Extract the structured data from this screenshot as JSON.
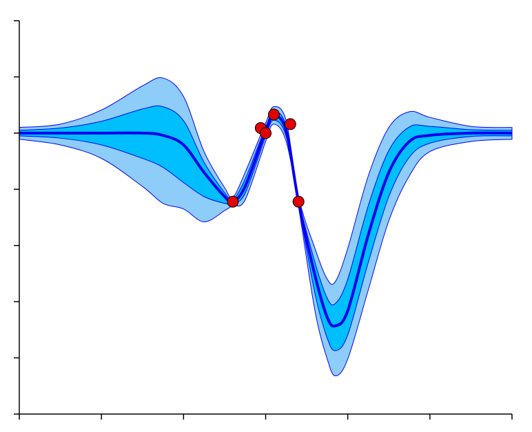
{
  "chart_data": {
    "type": "line",
    "x": [
      0,
      0.5,
      1,
      1.5,
      1.75,
      2,
      2.25,
      2.5,
      2.6,
      2.75,
      3,
      3.1,
      3.25,
      3.4,
      3.6,
      3.75,
      3.85,
      4,
      4.25,
      4.5,
      4.75,
      5,
      5.5,
      6
    ],
    "mean": {
      "color": "#0000ee",
      "values": [
        0,
        0,
        0,
        0,
        -0.04,
        -0.21,
        -0.7,
        -1.13,
        -1.22,
        -0.95,
        0.04,
        0.31,
        0.04,
        -1.22,
        -2.53,
        -3.28,
        -3.43,
        -3.16,
        -1.81,
        -0.7,
        -0.15,
        -0.04,
        0,
        0
      ]
    },
    "bands": [
      {
        "color": "#8ecdf9",
        "edge_color": "#0000ff",
        "upper": [
          0.1,
          0.16,
          0.41,
          0.84,
          0.98,
          0.65,
          -0.33,
          -0.97,
          -1.14,
          -0.7,
          0.18,
          0.47,
          0.22,
          -1.13,
          -2.05,
          -2.6,
          -2.64,
          -2.05,
          -0.76,
          0.1,
          0.38,
          0.28,
          0.12,
          0.1
        ],
        "lower": [
          -0.11,
          -0.21,
          -0.45,
          -0.95,
          -1.25,
          -1.35,
          -1.58,
          -1.38,
          -1.29,
          -1.19,
          -0.15,
          0.16,
          -0.15,
          -1.31,
          -3.16,
          -4.02,
          -4.32,
          -4.02,
          -2.79,
          -1.56,
          -0.76,
          -0.33,
          -0.15,
          -0.11
        ]
      },
      {
        "color": "#00bfff",
        "edge_color": "#0000ff",
        "upper": [
          0.05,
          0.09,
          0.21,
          0.43,
          0.47,
          0.22,
          -0.52,
          -1.06,
          -1.18,
          -0.82,
          0.11,
          0.38,
          0.12,
          -1.17,
          -2.3,
          -2.94,
          -3.03,
          -2.6,
          -1.29,
          -0.31,
          0.11,
          0.12,
          0.06,
          0.05
        ],
        "lower": [
          -0.05,
          -0.09,
          -0.21,
          -0.45,
          -0.61,
          -0.88,
          -1.13,
          -1.25,
          -1.25,
          -1.07,
          -0.06,
          0.23,
          -0.06,
          -1.27,
          -2.85,
          -3.65,
          -3.87,
          -3.59,
          -2.3,
          -1.13,
          -0.43,
          -0.18,
          -0.06,
          -0.05
        ]
      }
    ],
    "points": {
      "color": "#e00000",
      "x": [
        2.6,
        2.94,
        3.0,
        3.1,
        3.3,
        3.4
      ],
      "y": [
        -1.22,
        0.09,
        0,
        0.33,
        0.16,
        -1.22
      ]
    },
    "xlim": [
      0,
      6
    ],
    "xticks": [
      0,
      1,
      2,
      3,
      4,
      5,
      6
    ],
    "ylim": [
      -5,
      2
    ],
    "yticks": [
      -5,
      -4,
      -3,
      -2,
      -1,
      0,
      1,
      2
    ]
  }
}
